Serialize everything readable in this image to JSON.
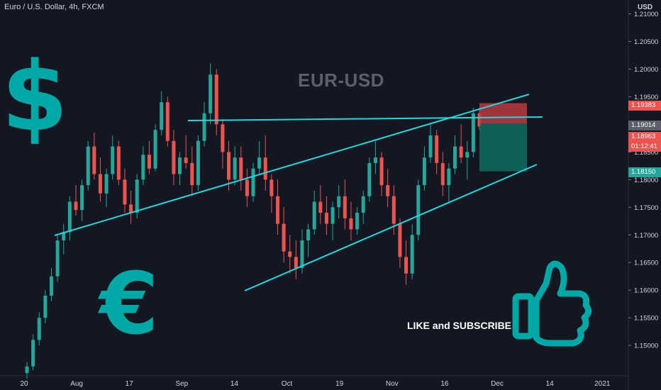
{
  "header": {
    "symbol_line": "Euro / U.S. Dollar, 4h, FXCM",
    "currency": "USD"
  },
  "overlay": {
    "ticker": "EUR-USD",
    "cta": "LIKE and SUBSCRIBE",
    "icons": [
      "dollar-sign-icon",
      "euro-sign-icon",
      "thumbs-up-icon"
    ]
  },
  "badges": {
    "stop": "1.19383",
    "last": "1.19014",
    "price": "1.18963",
    "countdown": "01:12:41",
    "target": "1.18150"
  },
  "colors": {
    "background": "#131722",
    "up": "#26a69a",
    "down": "#ef5350",
    "trendline": "#22d8e0",
    "accent_icon": "#00a9a5",
    "stop_zone": "#b83a3f",
    "target_zone": "#0f6e62"
  },
  "chart_data": {
    "type": "candlestick",
    "title": "Euro / U.S. Dollar, 4h, FXCM",
    "ylabel": "USD",
    "ylim": [
      1.1445,
      1.2125
    ],
    "y_ticks": [
      "1.21000",
      "1.20500",
      "1.20000",
      "1.19500",
      "1.19000",
      "1.18500",
      "1.18000",
      "1.17500",
      "1.17000",
      "1.16500",
      "1.16000",
      "1.15500",
      "1.15000"
    ],
    "x_ticks": [
      "20",
      "Aug",
      "17",
      "Sep",
      "14",
      "Oct",
      "19",
      "Nov",
      "16",
      "Dec",
      "14",
      "2021"
    ],
    "series": [
      {
        "values": [
          [
            1.145,
            1.147,
            1.144,
            1.1462
          ],
          [
            1.1462,
            1.152,
            1.1455,
            1.151
          ],
          [
            1.151,
            1.156,
            1.15,
            1.155
          ],
          [
            1.155,
            1.16,
            1.154,
            1.159
          ],
          [
            1.159,
            1.164,
            1.158,
            1.1625
          ],
          [
            1.1625,
            1.17,
            1.1615,
            1.169
          ],
          [
            1.169,
            1.172,
            1.1665,
            1.1705
          ],
          [
            1.1705,
            1.177,
            1.169,
            1.176
          ],
          [
            1.176,
            1.179,
            1.1735,
            1.1745
          ],
          [
            1.1745,
            1.18,
            1.1725,
            1.179
          ],
          [
            1.179,
            1.187,
            1.178,
            1.186
          ],
          [
            1.186,
            1.1885,
            1.18,
            1.181
          ],
          [
            1.181,
            1.184,
            1.176,
            1.1775
          ],
          [
            1.1775,
            1.182,
            1.175,
            1.181
          ],
          [
            1.181,
            1.188,
            1.18,
            1.186
          ],
          [
            1.186,
            1.187,
            1.179,
            1.18
          ],
          [
            1.18,
            1.182,
            1.174,
            1.1755
          ],
          [
            1.1755,
            1.178,
            1.172,
            1.174
          ],
          [
            1.174,
            1.181,
            1.173,
            1.18
          ],
          [
            1.18,
            1.186,
            1.179,
            1.1845
          ],
          [
            1.1845,
            1.187,
            1.181,
            1.182
          ],
          [
            1.182,
            1.19,
            1.1815,
            1.189
          ],
          [
            1.189,
            1.196,
            1.188,
            1.194
          ],
          [
            1.194,
            1.195,
            1.186,
            1.187
          ],
          [
            1.187,
            1.189,
            1.179,
            1.181
          ],
          [
            1.181,
            1.185,
            1.179,
            1.184
          ],
          [
            1.184,
            1.188,
            1.182,
            1.183
          ],
          [
            1.183,
            1.186,
            1.177,
            1.179
          ],
          [
            1.179,
            1.188,
            1.178,
            1.187
          ],
          [
            1.187,
            1.194,
            1.186,
            1.192
          ],
          [
            1.192,
            1.201,
            1.19,
            1.199
          ],
          [
            1.199,
            1.2,
            1.188,
            1.19
          ],
          [
            1.19,
            1.191,
            1.182,
            1.185
          ],
          [
            1.185,
            1.187,
            1.178,
            1.18
          ],
          [
            1.18,
            1.186,
            1.179,
            1.184
          ],
          [
            1.184,
            1.186,
            1.178,
            1.18
          ],
          [
            1.18,
            1.182,
            1.175,
            1.177
          ],
          [
            1.177,
            1.183,
            1.176,
            1.182
          ],
          [
            1.182,
            1.187,
            1.181,
            1.184
          ],
          [
            1.184,
            1.188,
            1.178,
            1.18
          ],
          [
            1.18,
            1.181,
            1.174,
            1.177
          ],
          [
            1.177,
            1.18,
            1.17,
            1.172
          ],
          [
            1.172,
            1.175,
            1.165,
            1.167
          ],
          [
            1.167,
            1.17,
            1.163,
            1.166
          ],
          [
            1.166,
            1.169,
            1.162,
            1.164
          ],
          [
            1.164,
            1.171,
            1.163,
            1.169
          ],
          [
            1.169,
            1.172,
            1.166,
            1.171
          ],
          [
            1.171,
            1.178,
            1.17,
            1.176
          ],
          [
            1.176,
            1.179,
            1.172,
            1.174
          ],
          [
            1.174,
            1.177,
            1.17,
            1.172
          ],
          [
            1.172,
            1.176,
            1.169,
            1.175
          ],
          [
            1.175,
            1.179,
            1.173,
            1.177
          ],
          [
            1.177,
            1.18,
            1.171,
            1.173
          ],
          [
            1.173,
            1.176,
            1.169,
            1.171
          ],
          [
            1.171,
            1.175,
            1.17,
            1.174
          ],
          [
            1.174,
            1.178,
            1.172,
            1.177
          ],
          [
            1.177,
            1.184,
            1.176,
            1.183
          ],
          [
            1.183,
            1.187,
            1.181,
            1.184
          ],
          [
            1.184,
            1.185,
            1.177,
            1.179
          ],
          [
            1.179,
            1.182,
            1.175,
            1.177
          ],
          [
            1.177,
            1.179,
            1.17,
            1.172
          ],
          [
            1.172,
            1.173,
            1.164,
            1.166
          ],
          [
            1.166,
            1.169,
            1.161,
            1.163
          ],
          [
            1.163,
            1.172,
            1.162,
            1.17
          ],
          [
            1.17,
            1.18,
            1.169,
            1.179
          ],
          [
            1.179,
            1.186,
            1.178,
            1.184
          ],
          [
            1.184,
            1.19,
            1.183,
            1.188
          ],
          [
            1.188,
            1.189,
            1.181,
            1.183
          ],
          [
            1.183,
            1.185,
            1.177,
            1.179
          ],
          [
            1.179,
            1.183,
            1.176,
            1.182
          ],
          [
            1.182,
            1.188,
            1.181,
            1.186
          ],
          [
            1.186,
            1.19,
            1.183,
            1.184
          ],
          [
            1.184,
            1.187,
            1.18,
            1.185
          ],
          [
            1.185,
            1.193,
            1.184,
            1.192
          ],
          [
            1.192,
            1.193,
            1.189,
            1.1896
          ]
        ]
      }
    ],
    "annotations": [
      {
        "type": "trendline",
        "label": "channel-upper",
        "from": [
          "Jul 24",
          1.1705
        ],
        "to": [
          "Dec 7",
          1.1958
        ]
      },
      {
        "type": "trendline",
        "label": "channel-lower",
        "from": [
          "Sep 20",
          1.16
        ],
        "to": [
          "Dec 19",
          1.1832
        ]
      },
      {
        "type": "trendline",
        "label": "resistance",
        "from": [
          "Sep 2",
          1.1918
        ],
        "to": [
          "Dec 19",
          1.1925
        ]
      },
      {
        "type": "position",
        "label": "short",
        "entry": 1.19014,
        "stop": 1.19383,
        "target": 1.1815
      }
    ]
  }
}
